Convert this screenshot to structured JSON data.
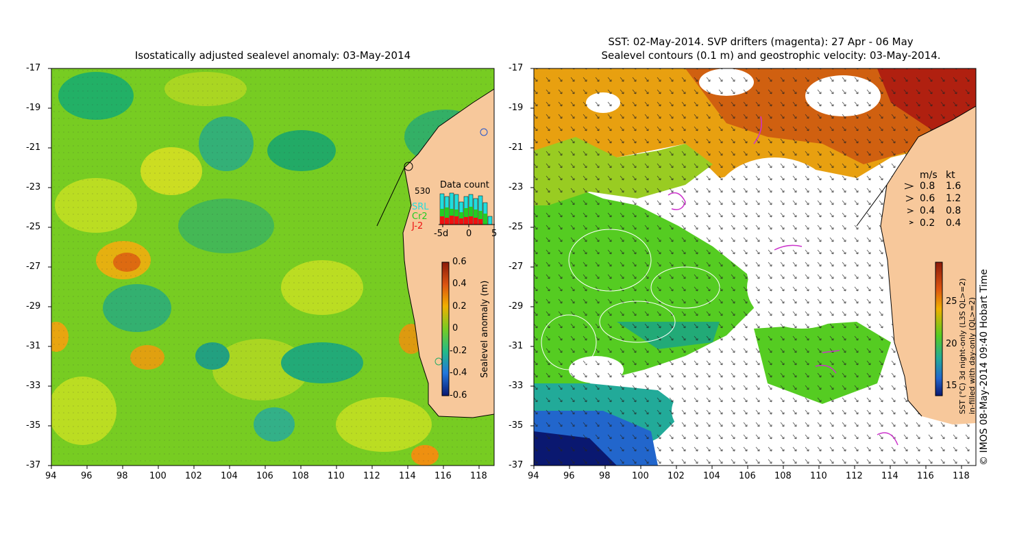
{
  "left_panel": {
    "title": "Isostatically adjusted sealevel anomaly: 03-May-2014",
    "colorbar": {
      "label": "Sealevel anomaly (m)",
      "ticks": [
        "0.6",
        "0.4",
        "0.2",
        "0",
        "-0.2",
        "-0.4",
        "-0.6"
      ]
    },
    "data_count": {
      "title": "Data count",
      "max_label": "530",
      "satellites": [
        {
          "name": "SRL",
          "color": "#22dddd"
        },
        {
          "name": "Cr2",
          "color": "#22cc22"
        },
        {
          "name": "J-2",
          "color": "#ee1111"
        }
      ],
      "x_labels": [
        "-5d",
        "0",
        "5"
      ]
    }
  },
  "right_panel": {
    "title_line1": "SST: 02-May-2014. SVP drifters (magenta): 27 Apr - 06 May",
    "title_line2": "Sealevel contours (0.1 m) and geostrophic velocity: 03-May-2014.",
    "speed_legend": {
      "header_ms": "m/s",
      "header_kt": "kt",
      "rows": [
        {
          "ms": "0.8",
          "kt": "1.6"
        },
        {
          "ms": "0.6",
          "kt": "1.2"
        },
        {
          "ms": "0.4",
          "kt": "0.8"
        },
        {
          "ms": "0.2",
          "kt": "0.4"
        }
      ]
    },
    "colorbar": {
      "label_line1": "SST (°C) 3d night-only (L3S QL>=2)",
      "label_line2": "in-filled with day-only (QL>=2)",
      "ticks": [
        "25",
        "20",
        "15"
      ]
    },
    "credit": "© IMOS 08-May-2014 09:40 Hobart Time"
  },
  "axes": {
    "x_ticks": [
      "94",
      "96",
      "98",
      "100",
      "102",
      "104",
      "106",
      "108",
      "110",
      "112",
      "114",
      "116",
      "118"
    ],
    "y_ticks": [
      "-17",
      "-19",
      "-21",
      "-23",
      "-25",
      "-27",
      "-29",
      "-31",
      "-33",
      "-35",
      "-37"
    ]
  },
  "colors": {
    "land": "#f7c89b",
    "ocean_mid": "#66cc33",
    "sst_warm": "#e8a010",
    "sst_hot": "#c02010",
    "sst_cool": "#22aa88",
    "sst_cold": "#1133aa",
    "drifter": "#cc33cc"
  }
}
